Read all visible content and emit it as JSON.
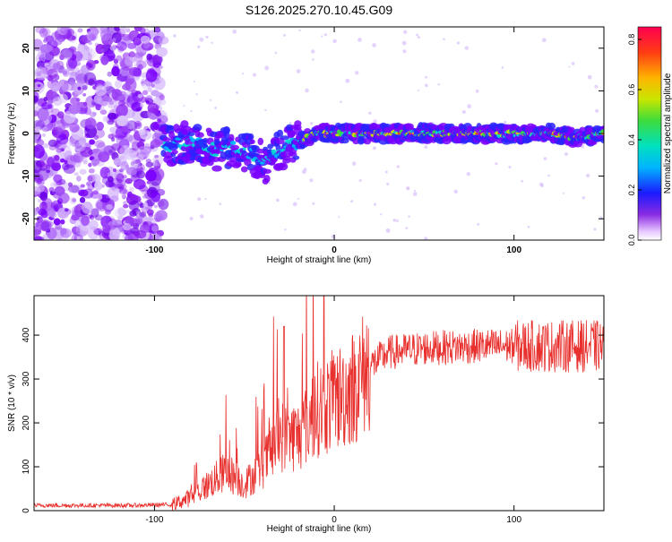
{
  "title": "S126.2025.270.10.45.G09",
  "chart_data": [
    {
      "type": "heatmap",
      "xlabel": "Height of straight line (km)",
      "ylabel": "Frequency (Hz)",
      "xlim": [
        -167,
        150
      ],
      "ylim": [
        -25,
        25
      ],
      "xticks": [
        -100,
        0,
        100
      ],
      "yticks": [
        -20,
        -10,
        0,
        10,
        20
      ],
      "colorbar": {
        "label": "Normalized spectral amplitude",
        "range": [
          0.0,
          0.85
        ],
        "ticks": [
          "0.0",
          "0.2",
          "0.4",
          "0.6",
          "0.8"
        ]
      },
      "ridge": {
        "x": [
          -95,
          -80,
          -65,
          -55,
          -45,
          -38,
          -30,
          -20,
          -10,
          0,
          20,
          40,
          60,
          80,
          100,
          120,
          135,
          150
        ],
        "freq": [
          -3,
          -2,
          -4,
          -3,
          -5,
          -7,
          -4,
          -2,
          0,
          0,
          0,
          0,
          0,
          0,
          0,
          0,
          -1,
          0
        ]
      },
      "noise_region_x": [
        -167,
        -95
      ]
    },
    {
      "type": "line",
      "xlabel": "Height of straight line (km)",
      "ylabel": "SNR (10 * v/v)",
      "xlim": [
        -167,
        150
      ],
      "ylim": [
        0,
        490
      ],
      "xticks": [
        -100,
        0,
        100
      ],
      "yticks": [
        0,
        100,
        200,
        300,
        400
      ],
      "color": "#e8312e",
      "trend": {
        "x": [
          -167,
          -110,
          -90,
          -80,
          -70,
          -60,
          -50,
          -40,
          -30,
          -20,
          -10,
          0,
          10,
          20,
          30,
          50,
          80,
          110,
          150
        ],
        "y": [
          12,
          12,
          14,
          30,
          60,
          90,
          60,
          100,
          170,
          170,
          230,
          250,
          280,
          330,
          360,
          370,
          375,
          375,
          375
        ]
      }
    }
  ]
}
